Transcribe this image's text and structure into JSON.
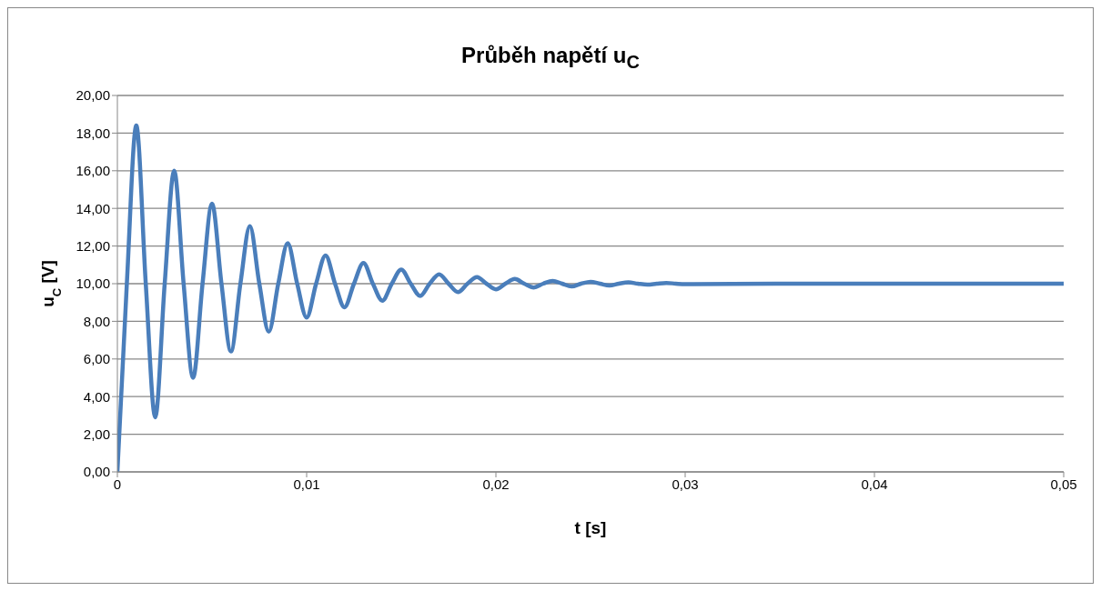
{
  "chart_data": {
    "type": "line",
    "title": "Průběh napětí u$_{C}$",
    "xlabel": "t [s]",
    "ylabel": "u$_{C}$ [V]",
    "x": [
      0,
      0.0005,
      0.001,
      0.0015,
      0.002,
      0.0025,
      0.003,
      0.0035,
      0.004,
      0.0045,
      0.005,
      0.0055,
      0.006,
      0.0065,
      0.007,
      0.0075,
      0.008,
      0.0085,
      0.009,
      0.0095,
      0.01,
      0.0105,
      0.011,
      0.0115,
      0.012,
      0.0125,
      0.013,
      0.0135,
      0.014,
      0.0145,
      0.015,
      0.0155,
      0.016,
      0.0165,
      0.017,
      0.0175,
      0.018,
      0.0185,
      0.019,
      0.0195,
      0.02,
      0.0205,
      0.021,
      0.0215,
      0.022,
      0.0225,
      0.023,
      0.0235,
      0.024,
      0.0245,
      0.025,
      0.0255,
      0.026,
      0.0265,
      0.027,
      0.0275,
      0.028,
      0.0285,
      0.029,
      0.0295,
      0.03,
      0.035,
      0.05
    ],
    "series": [
      {
        "color": "#4a7ebb",
        "values": [
          0,
          10,
          18.4,
          10,
          2.9,
          10,
          16.0,
          10,
          5.0,
          10,
          14.25,
          10,
          6.4,
          10,
          13.05,
          10,
          7.45,
          10,
          12.15,
          10,
          8.2,
          10,
          11.5,
          10,
          8.75,
          10,
          11.1,
          10,
          9.1,
          10,
          10.75,
          10,
          9.35,
          10,
          10.5,
          10,
          9.55,
          10,
          10.35,
          10,
          9.7,
          10,
          10.25,
          10,
          9.8,
          10,
          10.15,
          10,
          9.85,
          10,
          10.1,
          10,
          9.9,
          10,
          10.07,
          10,
          9.95,
          10,
          10.04,
          10,
          9.97,
          10,
          10
        ]
      }
    ],
    "xlim": [
      0,
      0.05
    ],
    "xticks": [
      0,
      {
        "value": 0.01,
        "label": "0,01"
      },
      {
        "value": 0.02,
        "label": "0,02"
      },
      {
        "value": 0.03,
        "label": "0,03"
      },
      {
        "value": 0.04,
        "label": "0,04"
      },
      {
        "value": 0.05,
        "label": "0,05"
      }
    ],
    "ylim": [
      0,
      20
    ],
    "yticks": [
      {
        "value": 0,
        "label": "0,00"
      },
      {
        "value": 2,
        "label": "2,00"
      },
      {
        "value": 4,
        "label": "4,00"
      },
      {
        "value": 6,
        "label": "6,00"
      },
      {
        "value": 8,
        "label": "8,00"
      },
      {
        "value": 10,
        "label": "10,00"
      },
      {
        "value": 12,
        "label": "12,00"
      },
      {
        "value": 14,
        "label": "14,00"
      },
      {
        "value": 16,
        "label": "16,00"
      },
      {
        "value": 18,
        "label": "18,00"
      },
      {
        "value": 20,
        "label": "20,00"
      }
    ],
    "grid": "y",
    "legend": false,
    "marker": "none",
    "line_style": "solid"
  }
}
